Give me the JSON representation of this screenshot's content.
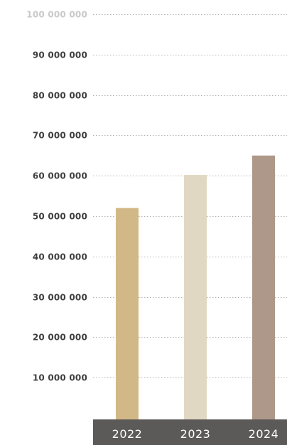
{
  "chart_data": {
    "type": "bar",
    "categories": [
      "2022",
      "2023",
      "2024"
    ],
    "values": [
      52000000,
      60200000,
      65000000
    ],
    "bar_colors": [
      "#d3b887",
      "#e1d8c3",
      "#ae9889"
    ],
    "ylim": [
      0,
      100000000
    ],
    "y_ticks": [
      {
        "value": 10000000,
        "label": "10 000 000"
      },
      {
        "value": 20000000,
        "label": "20 000 000"
      },
      {
        "value": 30000000,
        "label": "30 000 000"
      },
      {
        "value": 40000000,
        "label": "40 000 000"
      },
      {
        "value": 50000000,
        "label": "50 000 000"
      },
      {
        "value": 60000000,
        "label": "60 000 000"
      },
      {
        "value": 70000000,
        "label": "70 000 000"
      },
      {
        "value": 80000000,
        "label": "80 000 000"
      },
      {
        "value": 90000000,
        "label": "90 000 000"
      },
      {
        "value": 100000000,
        "label": "100 000 000"
      }
    ],
    "grid": true,
    "category_band_color": "#5b5a58",
    "tick_label_color": "#3f3f3f",
    "top_tick_label_color": "#c9c9c9"
  }
}
